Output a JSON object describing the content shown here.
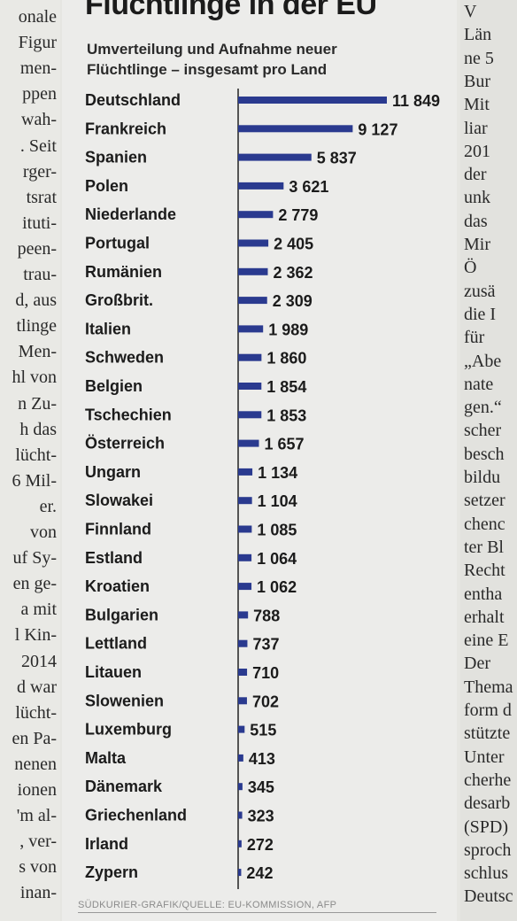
{
  "left_column": {
    "lines": [
      "onale",
      "Figur",
      "men-",
      "ppen",
      "wah-",
      ". Seit",
      "rger-",
      "tsrat",
      "ituti-",
      "peen-",
      "trau-",
      "d, aus",
      "tlinge",
      "Men-",
      "hl von",
      "n Zu-",
      "h das",
      "lücht-",
      "6 Mil-",
      "er.",
      "von",
      "uf Sy-",
      "en ge-",
      "a mit",
      "l Kin-",
      "2014",
      "d war",
      "lücht-",
      "en Pa-",
      "nenen",
      "ionen",
      "'m al-",
      ", ver-",
      "s von",
      "inan-"
    ]
  },
  "right_column": {
    "lines": [
      "V",
      "Län",
      "ne 5",
      "Bur",
      "Mit",
      "liar",
      "201",
      "der",
      "unk",
      "das",
      "Mir",
      "Ö",
      "zusä",
      "die I",
      "für",
      "„Abe",
      "nate",
      "gen.“",
      "scher",
      "besch",
      "bildu",
      "setzer",
      "chenc",
      "ter Bl",
      "Recht",
      "entha",
      "erhalt",
      "eine E",
      "Der",
      "Thema",
      "form d",
      "stützte",
      "Unter",
      "cherhe",
      "desarb",
      "(SPD)",
      "sproch",
      "schlus",
      "Deutsc"
    ]
  },
  "graphic": {
    "title": "Flüchtlinge in der EU",
    "subtitle": "Umverteilung und Aufnahme neuer Flüchtlinge – insgesamt pro Land",
    "source": "SÜDKURIER-GRAFIK/QUELLE: EU-KOMMISSION, AFP"
  },
  "chart_data": {
    "type": "bar",
    "orientation": "horizontal",
    "bar_color": "#2a3a8f",
    "categories": [
      "Deutschland",
      "Frankreich",
      "Spanien",
      "Polen",
      "Niederlande",
      "Portugal",
      "Rumänien",
      "Großbrit.",
      "Italien",
      "Schweden",
      "Belgien",
      "Tschechien",
      "Österreich",
      "Ungarn",
      "Slowakei",
      "Finnland",
      "Estland",
      "Kroatien",
      "Bulgarien",
      "Lettland",
      "Litauen",
      "Slowenien",
      "Luxemburg",
      "Malta",
      "Dänemark",
      "Griechenland",
      "Irland",
      "Zypern"
    ],
    "values": [
      11849,
      9127,
      5837,
      3621,
      2779,
      2405,
      2362,
      2309,
      1989,
      1860,
      1854,
      1853,
      1657,
      1134,
      1104,
      1085,
      1064,
      1062,
      788,
      737,
      710,
      702,
      515,
      413,
      345,
      323,
      272,
      242
    ],
    "value_labels": [
      "11 849",
      "9 127",
      "5 837",
      "3 621",
      "2 779",
      "2 405",
      "2 362",
      "2 309",
      "1 989",
      "1 860",
      "1 854",
      "1 853",
      "1 657",
      "1 134",
      "1 104",
      "1 085",
      "1 064",
      "1 062",
      "788",
      "737",
      "710",
      "702",
      "515",
      "413",
      "345",
      "323",
      "272",
      "242"
    ],
    "title": "Flüchtlinge in der EU",
    "xlabel": "",
    "ylabel": "",
    "xlim": [
      0,
      11849
    ],
    "grid": false,
    "legend": "none"
  }
}
